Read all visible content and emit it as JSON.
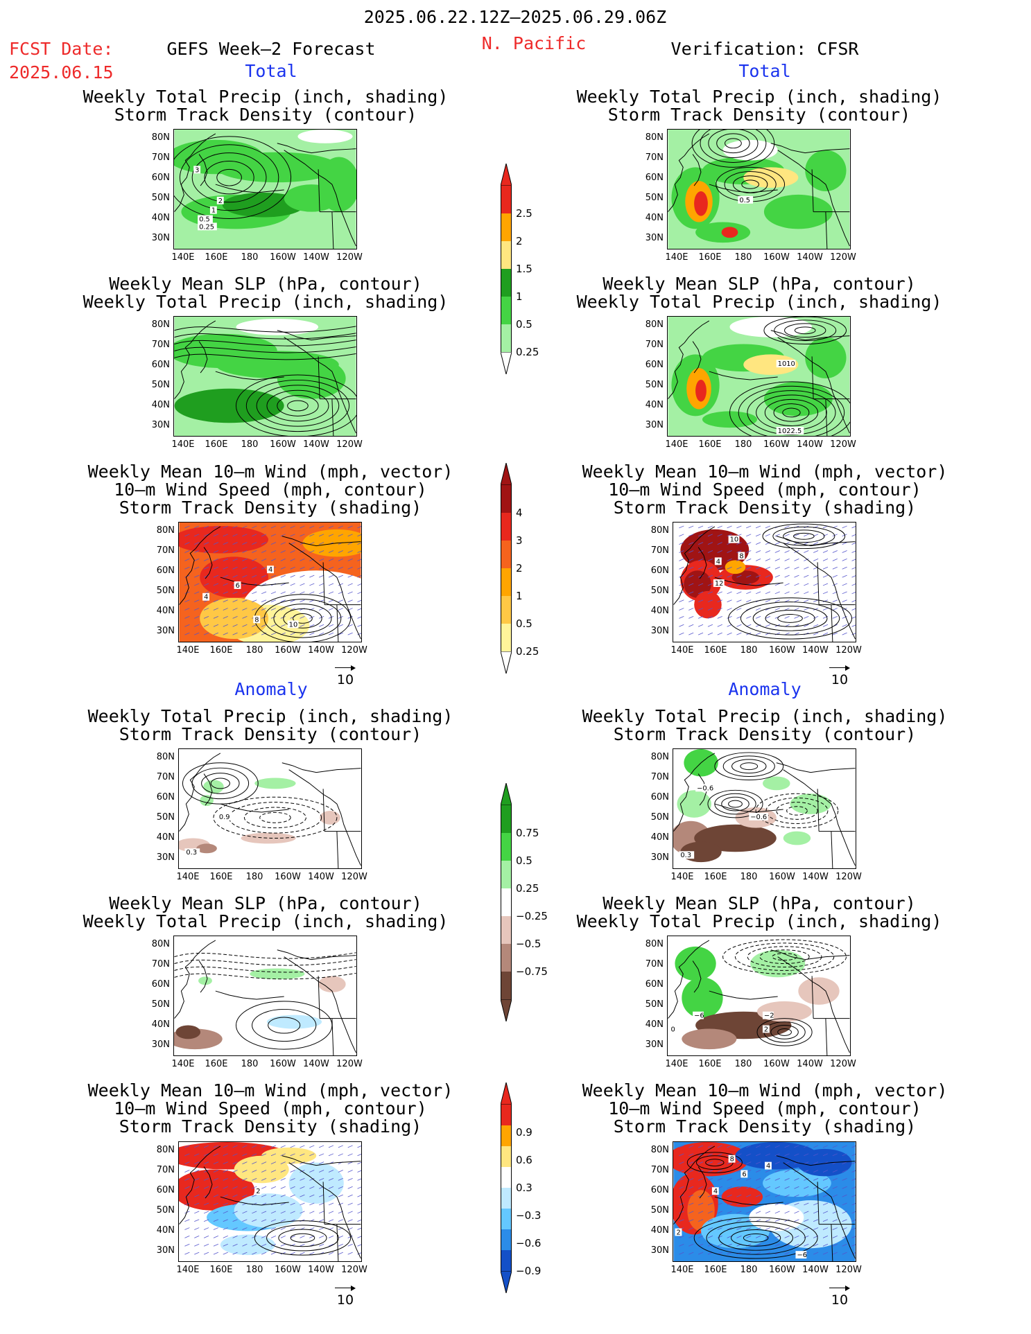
{
  "header": {
    "date_range": "2025.06.22.12Z–2025.06.29.06Z",
    "fcst_label": "FCST Date:",
    "fcst_date": "2025.06.15",
    "left_model": "GEFS Week–2 Forecast",
    "region": "N. Pacific",
    "right_verif": "Verification: CFSR"
  },
  "sections": {
    "total": "Total",
    "anomaly": "Anomaly"
  },
  "axes": {
    "lat": [
      "80N",
      "70N",
      "60N",
      "50N",
      "40N",
      "30N"
    ],
    "lon": [
      "140E",
      "160E",
      "180",
      "160W",
      "140W",
      "120W"
    ]
  },
  "titles": {
    "precip_storm": [
      "Weekly Total Precip (inch, shading)",
      "Storm Track Density (contour)"
    ],
    "slp_precip": [
      "Weekly Mean SLP (hPa, contour)",
      "Weekly Total Precip (inch, shading)"
    ],
    "wind_storm": [
      "Weekly Mean 10–m Wind (mph, vector)",
      "10–m Wind Speed (mph, contour)",
      "Storm Track Density (shading)"
    ]
  },
  "vector_ref": "10",
  "colorbars": {
    "total_precip": {
      "labels": [
        "2.5",
        "2",
        "1.5",
        "1",
        "0.5",
        "0.25"
      ],
      "colors": [
        "#e8281e",
        "#ffa500",
        "#ffe680",
        "#1f9e1f",
        "#44d444",
        "#a4f0a4"
      ]
    },
    "storm_total": {
      "labels": [
        "4",
        "3",
        "2",
        "1",
        "0.5",
        "0.25"
      ],
      "colors": [
        "#a01414",
        "#e8281e",
        "#f5631e",
        "#ffa500",
        "#ffc845",
        "#fff49a"
      ]
    },
    "precip_anom": {
      "labels": [
        "0.75",
        "0.5",
        "0.25",
        "−0.25",
        "−0.5",
        "−0.75"
      ],
      "colors": [
        "#1f9e1f",
        "#44d444",
        "#a4f0a4",
        "#ffffff",
        "#e6c6bc",
        "#b4887a",
        "#6e4536"
      ]
    },
    "storm_anom": {
      "labels": [
        "0.9",
        "0.6",
        "0.3",
        "−0.3",
        "−0.6",
        "−0.9"
      ],
      "colors": [
        "#e8281e",
        "#ffa500",
        "#ffe680",
        "#ffffff",
        "#bfeaff",
        "#64c8ff",
        "#2b8ce8",
        "#1450c8"
      ]
    }
  },
  "panel_labels": {
    "p1": [
      "3",
      "2",
      "1",
      "0.5",
      "0.25"
    ],
    "p2": [
      "0.5"
    ],
    "p4": [
      "1010",
      "1022.5"
    ],
    "p5": [
      "4",
      "6",
      "4",
      "8",
      "10"
    ],
    "p6": [
      "10",
      "4",
      "8",
      "12"
    ],
    "p7": [
      "0.9",
      "0.3"
    ],
    "p8": [
      "−0.6",
      "−0.6",
      "0.3"
    ],
    "p10": [
      "−2",
      "2",
      "−6",
      "0"
    ],
    "p11": [
      "2"
    ],
    "p12": [
      "8",
      "6",
      "4",
      "4",
      "2",
      "−6"
    ]
  }
}
